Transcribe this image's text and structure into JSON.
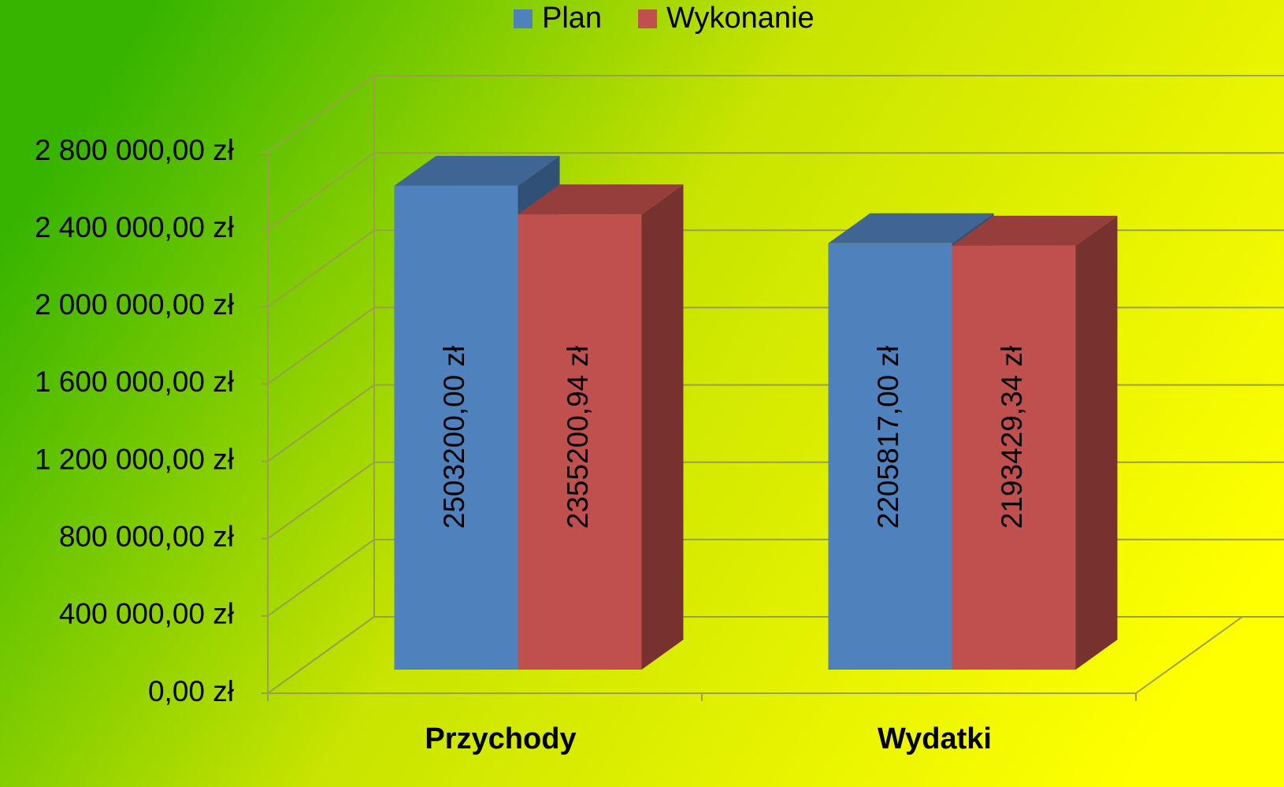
{
  "chart_data": {
    "type": "bar3d",
    "categories": [
      "Przychody",
      "Wydatki"
    ],
    "series": [
      {
        "name": "Plan",
        "color": "#4f81bd",
        "values": [
          2503200,
          2205817
        ],
        "value_labels": [
          "2503200,00 zł",
          "2205817,00 zł"
        ]
      },
      {
        "name": "Wykonanie",
        "color": "#c0504d",
        "values": [
          2355200.94,
          2193429.34
        ],
        "value_labels": [
          "2355200,94 zł",
          "2193429,34 zł"
        ]
      }
    ],
    "ylim": [
      0,
      2800000
    ],
    "yticks": [
      {
        "value": 0,
        "label": "0,00 zł"
      },
      {
        "value": 400000,
        "label": "400 000,00 zł"
      },
      {
        "value": 800000,
        "label": "800 000,00 zł"
      },
      {
        "value": 1200000,
        "label": "1 200 000,00 zł"
      },
      {
        "value": 1600000,
        "label": "1 600 000,00 zł"
      },
      {
        "value": 2000000,
        "label": "2 000 000,00 zł"
      },
      {
        "value": 2400000,
        "label": "2 400 000,00 zł"
      },
      {
        "value": 2800000,
        "label": "2 800 000,00 zł"
      }
    ],
    "grid": true,
    "legend": "top"
  }
}
